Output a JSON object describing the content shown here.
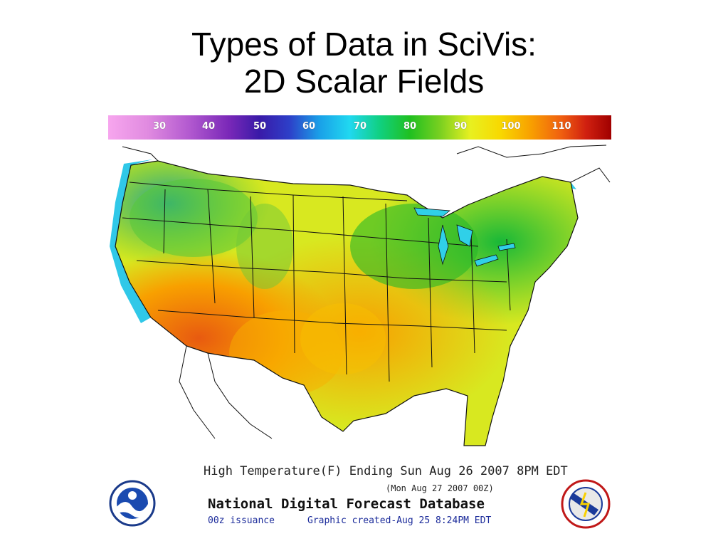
{
  "slide": {
    "title_line1": "Types of Data in SciVis:",
    "title_line2": "2D Scalar Fields"
  },
  "map": {
    "scale_labels": [
      "30",
      "40",
      "50",
      "60",
      "70",
      "80",
      "90",
      "100",
      "110"
    ],
    "caption_main": "High Temperature(F) Ending Sun Aug 26 2007  8PM EDT",
    "caption_sub": "(Mon Aug 27 2007 00Z)",
    "source_name": "National Digital Forecast Database",
    "issuance": "00z issuance",
    "created": "Graphic created-Aug 25  8:24PM EDT",
    "logo_left": "NOAA",
    "logo_right": "NATIONAL WEATHER SERVICE"
  }
}
